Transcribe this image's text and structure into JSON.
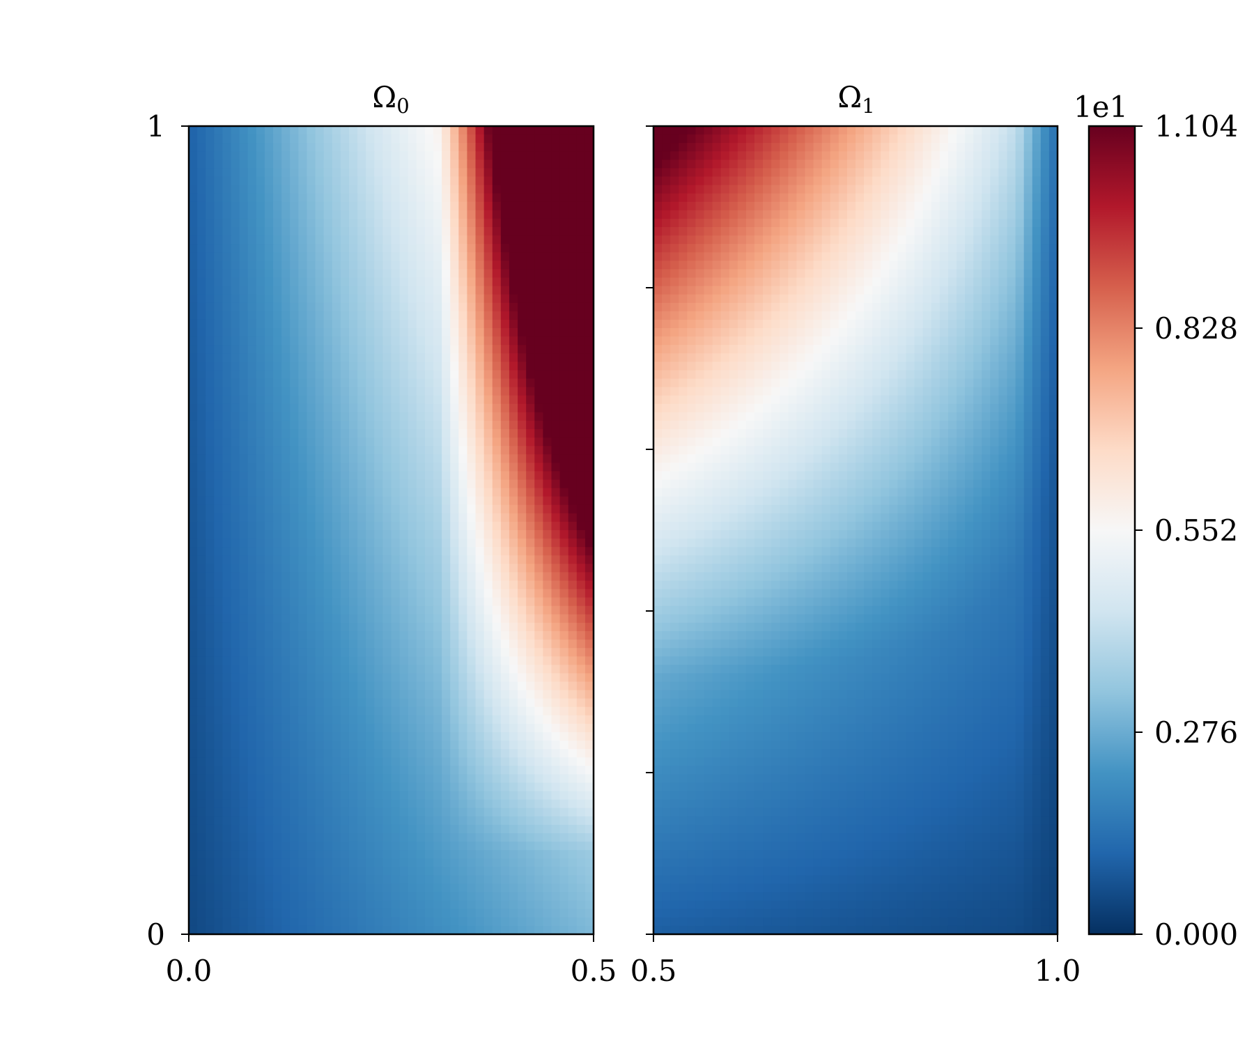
{
  "chart_data": [
    {
      "type": "heatmap",
      "title_base": "Ω",
      "title_sub": "0",
      "xlim": [
        0.0,
        0.5
      ],
      "ylim": [
        0,
        1
      ],
      "x_tick_labels": [
        "0.0",
        "0.5"
      ],
      "y_tick_labels": [
        "0",
        "1"
      ],
      "field": "hot corner at top-right; hot lobe from x≈0.33 to 0.5 for y above ≈0.5; elsewhere low"
    },
    {
      "type": "heatmap",
      "title_base": "Ω",
      "title_sub": "1",
      "xlim": [
        0.5,
        1.0
      ],
      "ylim": [
        0,
        1
      ],
      "x_tick_labels": [
        "0.5",
        "1.0"
      ],
      "y_tick_labels": [],
      "field": "hot corner at top-left; warm region over upper-left, cool towards the bottom and right edges"
    }
  ],
  "colorbar": {
    "colormap": "RdBu_r",
    "multiplier_label": "1e1",
    "range": [
      0.0,
      1.104
    ],
    "ticks": [
      {
        "value": 0.0,
        "label": "0.000"
      },
      {
        "value": 0.276,
        "label": "0.276"
      },
      {
        "value": 0.552,
        "label": "0.552"
      },
      {
        "value": 0.828,
        "label": "0.828"
      },
      {
        "value": 1.104,
        "label": "1.104"
      }
    ],
    "colors": [
      "#053061",
      "#2166ac",
      "#4393c3",
      "#92c5de",
      "#d1e5f0",
      "#f7f7f7",
      "#fddbc7",
      "#f4a582",
      "#d6604d",
      "#b2182b",
      "#67001f"
    ]
  }
}
